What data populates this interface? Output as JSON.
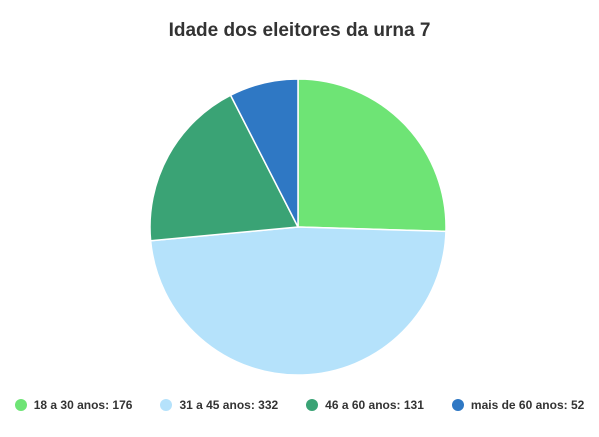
{
  "chart_data": {
    "type": "pie",
    "title": "Idade dos eleitores da urna 7",
    "categories": [
      "18 a 30 anos",
      "31 a 45 anos",
      "46 a 60 anos",
      "mais de 60 anos"
    ],
    "values": [
      176,
      332,
      131,
      52
    ],
    "colors": [
      "#6ee475",
      "#b5e2fb",
      "#3aa375",
      "#2f78c4"
    ],
    "legend_position": "bottom",
    "legend": [
      {
        "label": "18 a 30 anos: 176",
        "color": "#6ee475"
      },
      {
        "label": "31 a 45 anos: 332",
        "color": "#b5e2fb"
      },
      {
        "label": "46 a 60 anos: 131",
        "color": "#3aa375"
      },
      {
        "label": "mais de 60 anos: 52",
        "color": "#2f78c4"
      }
    ]
  }
}
